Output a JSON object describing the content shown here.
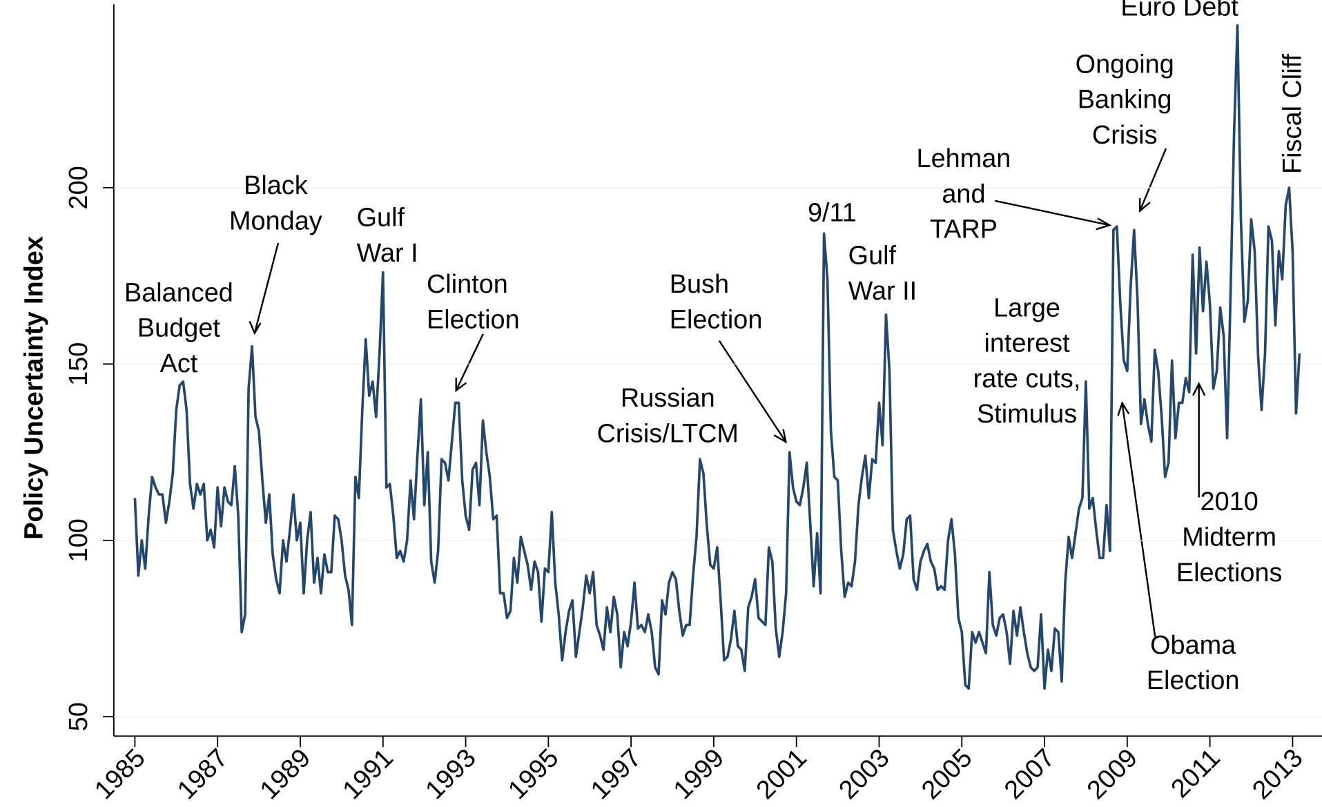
{
  "chart_data": {
    "type": "line",
    "y_label": "Policy Uncertainty Index",
    "color": "#24476b",
    "ylim": [
      44.5,
      252
    ],
    "yticks": [
      50,
      100,
      150,
      200
    ],
    "grid": true,
    "categories": [
      "1985",
      null,
      null,
      null,
      null,
      null,
      null,
      null,
      null,
      null,
      null,
      null,
      null,
      null,
      null,
      null,
      null,
      null,
      null,
      null,
      null,
      null,
      null,
      null,
      "1987",
      null,
      null,
      null,
      null,
      null,
      null,
      null,
      null,
      null,
      null,
      null,
      null,
      null,
      null,
      null,
      null,
      null,
      null,
      null,
      null,
      null,
      null,
      null,
      "1989",
      null,
      null,
      null,
      null,
      null,
      null,
      null,
      null,
      null,
      null,
      null,
      null,
      null,
      null,
      null,
      null,
      null,
      null,
      null,
      null,
      null,
      null,
      null,
      "1991",
      null,
      null,
      null,
      null,
      null,
      null,
      null,
      null,
      null,
      null,
      null,
      null,
      null,
      null,
      null,
      null,
      null,
      null,
      null,
      null,
      null,
      null,
      null,
      "1993",
      null,
      null,
      null,
      null,
      null,
      null,
      null,
      null,
      null,
      null,
      null,
      null,
      null,
      null,
      null,
      null,
      null,
      null,
      null,
      null,
      null,
      null,
      null,
      "1995",
      null,
      null,
      null,
      null,
      null,
      null,
      null,
      null,
      null,
      null,
      null,
      null,
      null,
      null,
      null,
      null,
      null,
      null,
      null,
      null,
      null,
      null,
      null,
      "1997",
      null,
      null,
      null,
      null,
      null,
      null,
      null,
      null,
      null,
      null,
      null,
      null,
      null,
      null,
      null,
      null,
      null,
      null,
      null,
      null,
      null,
      null,
      null,
      "1999",
      null,
      null,
      null,
      null,
      null,
      null,
      null,
      null,
      null,
      null,
      null,
      null,
      null,
      null,
      null,
      null,
      null,
      null,
      null,
      null,
      null,
      null,
      null,
      "2001",
      null,
      null,
      null,
      null,
      null,
      null,
      null,
      null,
      null,
      null,
      null,
      null,
      null,
      null,
      null,
      null,
      null,
      null,
      null,
      null,
      null,
      null,
      null,
      "2003",
      null,
      null,
      null,
      null,
      null,
      null,
      null,
      null,
      null,
      null,
      null,
      null,
      null,
      null,
      null,
      null,
      null,
      null,
      null,
      null,
      null,
      null,
      null,
      "2005",
      null,
      null,
      null,
      null,
      null,
      null,
      null,
      null,
      null,
      null,
      null,
      null,
      null,
      null,
      null,
      null,
      null,
      null,
      null,
      null,
      null,
      null,
      null,
      "2007",
      null,
      null,
      null,
      null,
      null,
      null,
      null,
      null,
      null,
      null,
      null,
      null,
      null,
      null,
      null,
      null,
      null,
      null,
      null,
      null,
      null,
      null,
      null,
      "2009",
      null,
      null,
      null,
      null,
      null,
      null,
      null,
      null,
      null,
      null,
      null,
      null,
      null,
      null,
      null,
      null,
      null,
      null,
      null,
      null,
      null,
      null,
      null,
      "2011",
      null,
      null,
      null,
      null,
      null,
      null,
      null,
      null,
      null,
      null,
      null,
      null,
      null,
      null,
      null,
      null,
      null,
      null,
      null,
      null,
      null,
      null,
      null,
      "2013",
      null,
      null
    ],
    "values": [
      112,
      90,
      100,
      92,
      107,
      118,
      115,
      113,
      113,
      105,
      111,
      119,
      137,
      144,
      145,
      137,
      116,
      109,
      116,
      113,
      116,
      100,
      103,
      98,
      115,
      104,
      115,
      111,
      110,
      121,
      107,
      74,
      79,
      143,
      155,
      135,
      131,
      117,
      105,
      113,
      96,
      89,
      85,
      100,
      94,
      103,
      113,
      100,
      105,
      85,
      100,
      108,
      88,
      95,
      85,
      96,
      91,
      91,
      107,
      106,
      100,
      90,
      86,
      76,
      118,
      112,
      137,
      157,
      141,
      145,
      135,
      153,
      176,
      115,
      116,
      107,
      95,
      97,
      94,
      100,
      117,
      106,
      124,
      140,
      110,
      125,
      94,
      88,
      97,
      123,
      122,
      117,
      128,
      139,
      139,
      117,
      107,
      103,
      120,
      122,
      110,
      134,
      125,
      118,
      106,
      107,
      85,
      85,
      78,
      80,
      95,
      88,
      101,
      97,
      93,
      86,
      94,
      91,
      77,
      92,
      91,
      108,
      88,
      79,
      66,
      74,
      80,
      83,
      67,
      74,
      81,
      90,
      85,
      91,
      76,
      73,
      69,
      81,
      74,
      84,
      79,
      64,
      74,
      70,
      77,
      88,
      75,
      76,
      74,
      79,
      74,
      64,
      62,
      83,
      79,
      88,
      91,
      89,
      80,
      73,
      76,
      76,
      90,
      101,
      123,
      119,
      104,
      93,
      92,
      98,
      83,
      66,
      67,
      72,
      80,
      70,
      69,
      63,
      81,
      84,
      89,
      78,
      77,
      76,
      98,
      94,
      75,
      67,
      74,
      85,
      125,
      115,
      111,
      110,
      115,
      122,
      105,
      87,
      102,
      85,
      187,
      174,
      131,
      118,
      117,
      97,
      84,
      88,
      87,
      94,
      110,
      118,
      124,
      112,
      123,
      122,
      139,
      127,
      164,
      148,
      103,
      97,
      92,
      96,
      106,
      107,
      89,
      86,
      94,
      97,
      99,
      94,
      92,
      86,
      87,
      86,
      100,
      106,
      96,
      78,
      74,
      59,
      58,
      74,
      71,
      74,
      71,
      68,
      91,
      76,
      73,
      78,
      79,
      74,
      65,
      80,
      73,
      81,
      74,
      68,
      64,
      63,
      64,
      79,
      58,
      69,
      63,
      75,
      74,
      60,
      88,
      101,
      95,
      102,
      109,
      112,
      145,
      109,
      112,
      103,
      95,
      95,
      110,
      97,
      188,
      189,
      167,
      151,
      148,
      172,
      188,
      168,
      133,
      140,
      133,
      128,
      154,
      148,
      135,
      118,
      122,
      151,
      129,
      139,
      139,
      146,
      142,
      181,
      153,
      183,
      165,
      179,
      167,
      143,
      148,
      166,
      158,
      129,
      170,
      215,
      246,
      191,
      162,
      168,
      191,
      182,
      152,
      137,
      153,
      189,
      185,
      161,
      182,
      174,
      195,
      200,
      182,
      136,
      153
    ],
    "annotations": [
      {
        "lines": [
          "Balanced",
          "Budget",
          "Act"
        ]
      },
      {
        "lines": [
          "Black",
          "Monday"
        ]
      },
      {
        "lines": [
          "Gulf",
          "War I"
        ]
      },
      {
        "lines": [
          "Clinton",
          "Election"
        ]
      },
      {
        "lines": [
          "Bush",
          "Election"
        ]
      },
      {
        "lines": [
          "Russian",
          "Crisis/LTCM"
        ]
      },
      {
        "lines": [
          "9/11"
        ]
      },
      {
        "lines": [
          "Gulf",
          "War II"
        ]
      },
      {
        "lines": [
          "Lehman",
          "and",
          "TARP"
        ]
      },
      {
        "lines": [
          "Ongoing",
          "Banking",
          "Crisis"
        ]
      },
      {
        "lines": [
          "Large",
          "interest",
          "rate cuts,",
          "Stimulus"
        ]
      },
      {
        "lines": [
          "2010",
          "Midterm",
          "Elections"
        ]
      },
      {
        "lines": [
          "Obama",
          "Election"
        ]
      },
      {
        "lines": [
          "Euro Debt"
        ]
      },
      {
        "lines": [
          "Fiscal Cliff"
        ]
      }
    ]
  }
}
